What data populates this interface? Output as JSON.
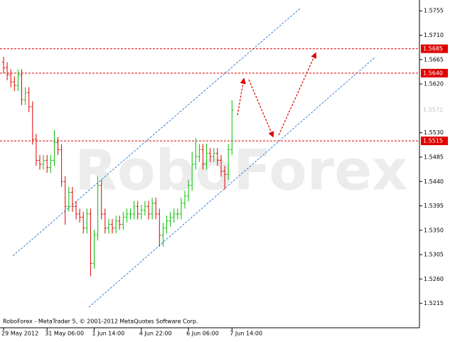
{
  "chart_data": {
    "type": "ohlc",
    "watermark": "RoboForex",
    "footer_text": "RoboForex - MetaTrader 5, © 2001-2012 MetaQuotes Software Corp.",
    "ylim": [
      1.517,
      1.5775
    ],
    "yticks": [
      1.5755,
      {
        "value": 1.571,
        "label": "1.5710"
      },
      1.5665,
      {
        "value": 1.562,
        "label": "1.5620"
      },
      {
        "value": 1.553,
        "label": "1.5530"
      },
      1.5485,
      {
        "value": 1.544,
        "label": "1.5440"
      },
      1.5395,
      {
        "value": 1.535,
        "label": "1.5350"
      },
      1.5305,
      {
        "value": 1.526,
        "label": "1.5260"
      },
      1.5215
    ],
    "levels": [
      {
        "value": 1.5685,
        "label": "1.5685"
      },
      {
        "value": 1.564,
        "label": "1.5640"
      },
      {
        "value": 1.5515,
        "label": "1.5515"
      }
    ],
    "level_color": "#e00000",
    "current_price": {
      "value": 1.5572,
      "label": "1.5572"
    },
    "up_color": "#00c000",
    "down_color": "#e00000",
    "categories": [
      "29 May 2012",
      null,
      null,
      null,
      null,
      null,
      null,
      null,
      null,
      null,
      null,
      null,
      "31 May 06:00",
      null,
      null,
      null,
      null,
      null,
      null,
      null,
      null,
      null,
      null,
      null,
      null,
      "1 Jun 14:00",
      null,
      null,
      null,
      null,
      null,
      null,
      null,
      null,
      null,
      null,
      null,
      null,
      "4 Jun 22:00",
      null,
      null,
      null,
      null,
      null,
      null,
      null,
      null,
      null,
      null,
      null,
      null,
      "6 Jun 06:00",
      null,
      null,
      null,
      null,
      null,
      null,
      null,
      null,
      null,
      null,
      null,
      "7 Jun 14:00"
    ],
    "open": [
      1.566,
      1.565,
      1.5637,
      1.5624,
      1.5617,
      1.5637,
      1.5591,
      1.5604,
      1.5578,
      1.5518,
      1.5479,
      1.5472,
      1.5479,
      1.5466,
      1.5479,
      1.5512,
      1.5499,
      1.544,
      1.5394,
      1.542,
      1.5394,
      1.538,
      1.5374,
      1.5354,
      1.538,
      1.5289,
      1.5341,
      1.5433,
      1.538,
      1.5354,
      1.5361,
      1.5354,
      1.5367,
      1.5361,
      1.5374,
      1.538,
      1.538,
      1.5394,
      1.538,
      1.5387,
      1.5394,
      1.538,
      1.54,
      1.538,
      1.5341,
      1.5354,
      1.5367,
      1.5374,
      1.538,
      1.538,
      1.54,
      1.5413,
      1.5433,
      1.5472,
      1.5486,
      1.5499,
      1.5472,
      1.5492,
      1.5486,
      1.5492,
      1.5479,
      1.5459,
      1.5453,
      1.5499
    ],
    "high": [
      1.567,
      1.566,
      1.5647,
      1.5634,
      1.5647,
      1.5647,
      1.5614,
      1.5614,
      1.5588,
      1.5528,
      1.5489,
      1.5489,
      1.5489,
      1.5489,
      1.5535,
      1.5522,
      1.5509,
      1.545,
      1.543,
      1.543,
      1.5404,
      1.539,
      1.5384,
      1.539,
      1.539,
      1.5351,
      1.545,
      1.5443,
      1.539,
      1.5371,
      1.5371,
      1.5377,
      1.5377,
      1.5384,
      1.539,
      1.539,
      1.5404,
      1.5404,
      1.5397,
      1.5404,
      1.5404,
      1.541,
      1.541,
      1.539,
      1.5364,
      1.5377,
      1.5384,
      1.539,
      1.539,
      1.541,
      1.5423,
      1.5443,
      1.5495,
      1.552,
      1.5509,
      1.5509,
      1.551,
      1.5502,
      1.5502,
      1.5502,
      1.5489,
      1.5469,
      1.5509,
      1.559
    ],
    "low": [
      1.564,
      1.5627,
      1.5614,
      1.5607,
      1.5607,
      1.5581,
      1.5581,
      1.5568,
      1.5508,
      1.5469,
      1.5462,
      1.5462,
      1.5456,
      1.5456,
      1.5469,
      1.5489,
      1.543,
      1.536,
      1.5384,
      1.5384,
      1.537,
      1.5364,
      1.5344,
      1.5344,
      1.5265,
      1.5279,
      1.5331,
      1.537,
      1.5344,
      1.5344,
      1.5344,
      1.5344,
      1.5351,
      1.5351,
      1.5364,
      1.537,
      1.537,
      1.537,
      1.537,
      1.5377,
      1.537,
      1.537,
      1.537,
      1.532,
      1.532,
      1.5344,
      1.5357,
      1.5364,
      1.537,
      1.537,
      1.539,
      1.5403,
      1.5423,
      1.5462,
      1.5476,
      1.5462,
      1.5462,
      1.5476,
      1.5476,
      1.5469,
      1.5449,
      1.5425,
      1.5443,
      1.5489
    ],
    "close": [
      1.565,
      1.5637,
      1.5624,
      1.5617,
      1.5637,
      1.5591,
      1.5604,
      1.5578,
      1.5518,
      1.5479,
      1.5472,
      1.5479,
      1.5466,
      1.5479,
      1.5512,
      1.5499,
      1.544,
      1.5394,
      1.542,
      1.5394,
      1.538,
      1.5374,
      1.5354,
      1.538,
      1.5289,
      1.5341,
      1.5433,
      1.538,
      1.5354,
      1.5361,
      1.5354,
      1.5367,
      1.5361,
      1.5374,
      1.538,
      1.538,
      1.5394,
      1.538,
      1.5387,
      1.5394,
      1.538,
      1.54,
      1.538,
      1.5341,
      1.5354,
      1.5367,
      1.5374,
      1.538,
      1.538,
      1.54,
      1.5413,
      1.5433,
      1.5472,
      1.5486,
      1.5499,
      1.5472,
      1.5492,
      1.5486,
      1.5492,
      1.5479,
      1.5459,
      1.5453,
      1.5499,
      1.5572
    ]
  }
}
